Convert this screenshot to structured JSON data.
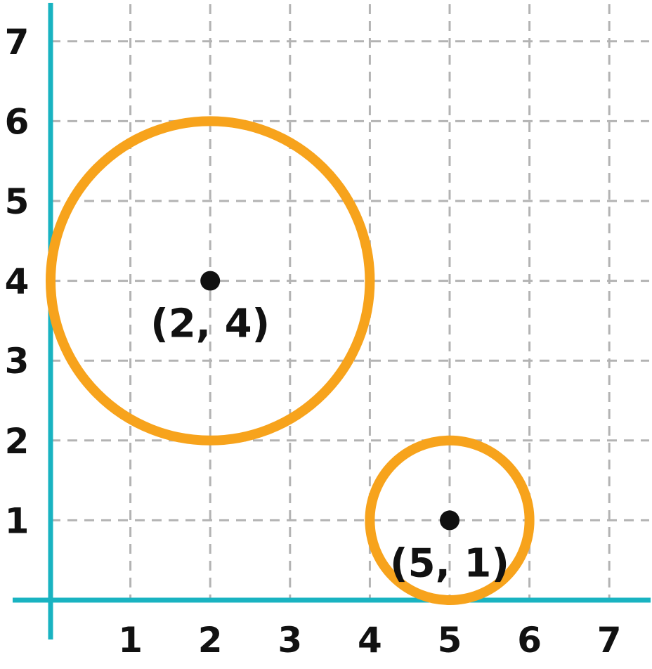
{
  "chart_data": {
    "type": "scatter",
    "xlim": [
      0,
      7
    ],
    "ylim": [
      0,
      7
    ],
    "grid": true,
    "x_ticks": [
      "1",
      "2",
      "3",
      "4",
      "5",
      "6",
      "7"
    ],
    "y_ticks": [
      "1",
      "2",
      "3",
      "4",
      "5",
      "6",
      "7"
    ],
    "circles": [
      {
        "center": [
          2,
          4
        ],
        "radius": 2,
        "label": "(2, 4)"
      },
      {
        "center": [
          5,
          1
        ],
        "radius": 1,
        "label": "(5, 1)"
      }
    ]
  },
  "colors": {
    "axis": "#19b3c1",
    "grid": "#b3b3b3",
    "circle": "#f7a31c",
    "point": "#111111"
  }
}
